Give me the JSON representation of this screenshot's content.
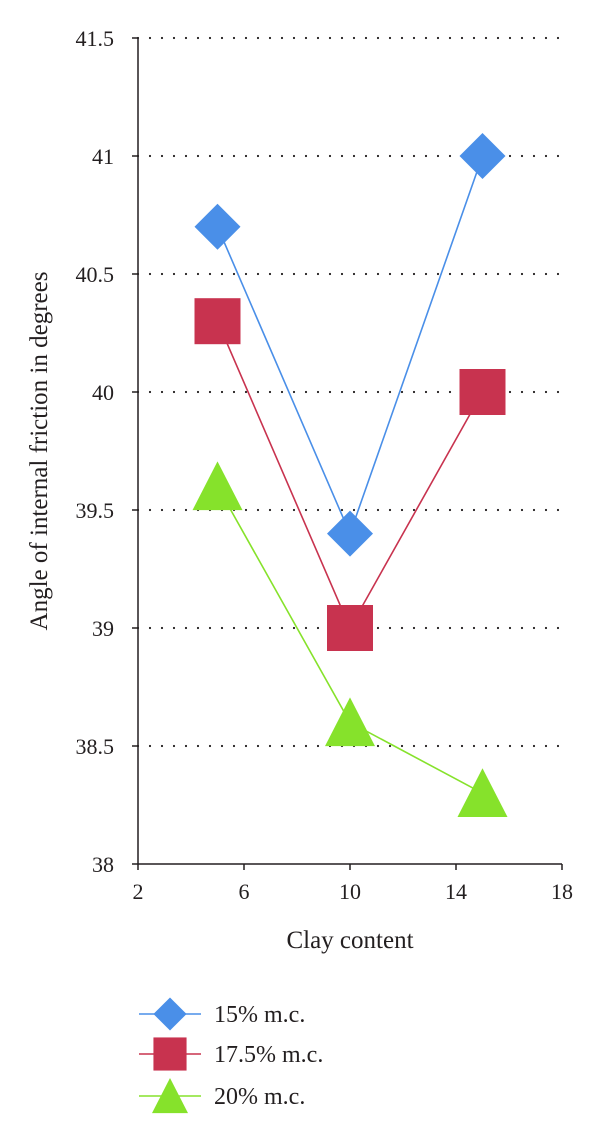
{
  "chart_data": {
    "type": "line",
    "title": "",
    "xlabel": "Clay content",
    "ylabel": "Angle of  internal friction in degrees",
    "xlim": [
      2,
      18
    ],
    "ylim": [
      38,
      41.5
    ],
    "x_ticks": [
      "2",
      "6",
      "10",
      "14",
      "18"
    ],
    "y_ticks": [
      "38",
      "38.5",
      "39",
      "39.5",
      "40",
      "40.5",
      "41",
      "41.5"
    ],
    "grid": "horizontal dotted",
    "legend_position": "bottom",
    "series": [
      {
        "name": "15% m.c.",
        "marker": "diamond",
        "color": "#4a8fe8",
        "x": [
          5,
          10,
          15
        ],
        "y": [
          40.7,
          39.4,
          41.0
        ]
      },
      {
        "name": "17.5% m.c.",
        "marker": "square",
        "color": "#c8334f",
        "x": [
          5,
          10,
          15
        ],
        "y": [
          40.3,
          39.0,
          40.0
        ]
      },
      {
        "name": "20% m.c.",
        "marker": "triangle",
        "color": "#86e22b",
        "x": [
          5,
          10,
          15
        ],
        "y": [
          39.6,
          38.6,
          38.3
        ]
      }
    ]
  }
}
